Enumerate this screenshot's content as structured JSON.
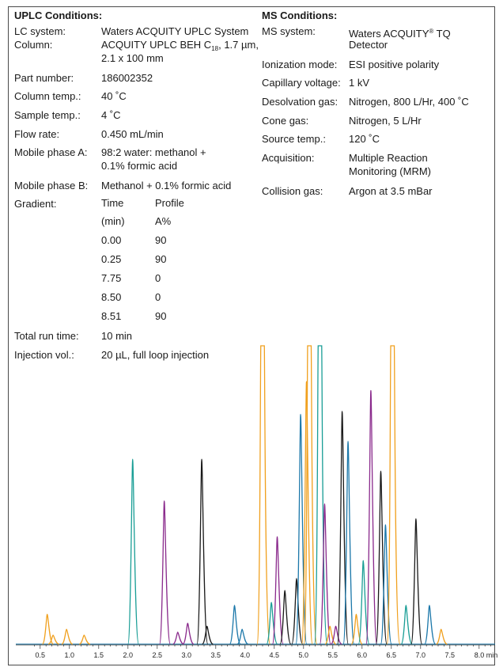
{
  "uplc": {
    "heading": "UPLC Conditions:",
    "lc_system_label": "LC system:",
    "lc_system_value": "Waters ACQUITY UPLC System",
    "column_label": "Column:",
    "column_value_1_pre": "ACQUITY UPLC BEH C",
    "column_value_1_sub": "18",
    "column_value_1_post": ", 1.7 µm,",
    "column_value_2": "2.1 x 100 mm",
    "part_label": "Part number:",
    "part_value": "186002352",
    "column_temp_label": "Column temp.:",
    "column_temp_value": "40 ˚C",
    "sample_temp_label": "Sample temp.:",
    "sample_temp_value": "4 ˚C",
    "flow_label": "Flow rate:",
    "flow_value": "0.450 mL/min",
    "mpa_label": "Mobile phase A:",
    "mpa_value_1": "98:2 water: methanol +",
    "mpa_value_2": "0.1% formic acid",
    "mpb_label": "Mobile phase B:",
    "mpb_value": "Methanol + 0.1% formic acid",
    "gradient_label": "Gradient:",
    "gradient_head_time": "Time",
    "gradient_head_profile": "Profile",
    "gradient_unit_time": "(min)",
    "gradient_unit_profile": "A%",
    "gradient_rows": [
      {
        "time": "0.00",
        "profile": "90"
      },
      {
        "time": "0.25",
        "profile": "90"
      },
      {
        "time": "7.75",
        "profile": "0"
      },
      {
        "time": "8.50",
        "profile": "0"
      },
      {
        "time": "8.51",
        "profile": "90"
      }
    ],
    "run_time_label": "Total run time:",
    "run_time_value": "10 min",
    "injection_label": "Injection vol.:",
    "injection_value": "20 µL, full loop injection"
  },
  "ms": {
    "heading": "MS Conditions:",
    "system_label": "MS system:",
    "system_value_1_pre": "Waters ACQUITY",
    "system_value_1_sup": "®",
    "system_value_1_post": " TQ",
    "system_value_2": "Detector",
    "ionization_label": "Ionization mode:",
    "ionization_value": "ESI positive polarity",
    "capillary_label": "Capillary voltage:",
    "capillary_value": "1 kV",
    "desolvation_label": "Desolvation gas:",
    "desolvation_value": "Nitrogen, 800 L/Hr, 400 ˚C",
    "cone_label": "Cone gas:",
    "cone_value": "Nitrogen, 5 L/Hr",
    "source_label": "Source temp.:",
    "source_value": "120 ˚C",
    "acquisition_label": "Acquisition:",
    "acquisition_value_1": "Multiple Reaction",
    "acquisition_value_2": "Monitoring (MRM)",
    "collision_label": "Collision gas:",
    "collision_value": "Argon at 3.5 mBar"
  },
  "colors": {
    "orange": "#f0a01e",
    "teal": "#1a9e96",
    "purple": "#8a2a8c",
    "black": "#1a1a1a",
    "blue": "#1c78aa"
  },
  "chart_data": {
    "type": "line",
    "xlim": [
      0.3,
      8.3
    ],
    "ylim": [
      0,
      100
    ],
    "xticks": [
      0.5,
      1.0,
      1.5,
      2.0,
      2.5,
      3.0,
      3.5,
      4.0,
      4.5,
      5.0,
      5.5,
      6.0,
      6.5,
      7.0,
      7.5,
      8.0
    ],
    "xtick_labels": [
      "0.5",
      "1.0",
      "1.5",
      "2.0",
      "2.5",
      "3.0",
      "3.5",
      "4.0",
      "4.5",
      "5.0",
      "5.5",
      "6.0",
      "6.5",
      "7.0",
      "7.5",
      "8.0 min"
    ],
    "peaks": [
      {
        "rt": 0.62,
        "h": 10,
        "color": "orange"
      },
      {
        "rt": 0.72,
        "h": 3,
        "color": "orange"
      },
      {
        "rt": 0.95,
        "h": 5,
        "color": "orange"
      },
      {
        "rt": 1.25,
        "h": 3,
        "color": "orange"
      },
      {
        "rt": 2.08,
        "h": 62,
        "color": "teal"
      },
      {
        "rt": 2.62,
        "h": 48,
        "color": "purple"
      },
      {
        "rt": 2.85,
        "h": 4,
        "color": "purple"
      },
      {
        "rt": 3.02,
        "h": 7,
        "color": "purple"
      },
      {
        "rt": 3.26,
        "h": 62,
        "color": "black"
      },
      {
        "rt": 3.35,
        "h": 6,
        "color": "black"
      },
      {
        "rt": 3.82,
        "h": 13,
        "color": "blue"
      },
      {
        "rt": 3.95,
        "h": 5,
        "color": "blue"
      },
      {
        "rt": 4.3,
        "h": 100,
        "color": "orange"
      },
      {
        "rt": 4.45,
        "h": 14,
        "color": "teal"
      },
      {
        "rt": 4.55,
        "h": 36,
        "color": "purple"
      },
      {
        "rt": 4.68,
        "h": 18,
        "color": "black"
      },
      {
        "rt": 4.88,
        "h": 22,
        "color": "black"
      },
      {
        "rt": 4.95,
        "h": 77,
        "color": "blue"
      },
      {
        "rt": 5.05,
        "h": 88,
        "color": "orange"
      },
      {
        "rt": 5.1,
        "h": 100,
        "color": "orange"
      },
      {
        "rt": 5.28,
        "h": 100,
        "color": "teal"
      },
      {
        "rt": 5.36,
        "h": 47,
        "color": "purple"
      },
      {
        "rt": 5.45,
        "h": 6,
        "color": "orange"
      },
      {
        "rt": 5.55,
        "h": 6,
        "color": "purple"
      },
      {
        "rt": 5.66,
        "h": 78,
        "color": "black"
      },
      {
        "rt": 5.76,
        "h": 68,
        "color": "blue"
      },
      {
        "rt": 5.9,
        "h": 10,
        "color": "orange"
      },
      {
        "rt": 6.02,
        "h": 28,
        "color": "teal"
      },
      {
        "rt": 6.15,
        "h": 85,
        "color": "purple"
      },
      {
        "rt": 6.32,
        "h": 58,
        "color": "black"
      },
      {
        "rt": 6.4,
        "h": 40,
        "color": "blue"
      },
      {
        "rt": 6.52,
        "h": 100,
        "color": "orange"
      },
      {
        "rt": 6.75,
        "h": 13,
        "color": "teal"
      },
      {
        "rt": 6.92,
        "h": 42,
        "color": "black"
      },
      {
        "rt": 7.15,
        "h": 13,
        "color": "blue"
      },
      {
        "rt": 7.35,
        "h": 5,
        "color": "orange"
      }
    ]
  }
}
